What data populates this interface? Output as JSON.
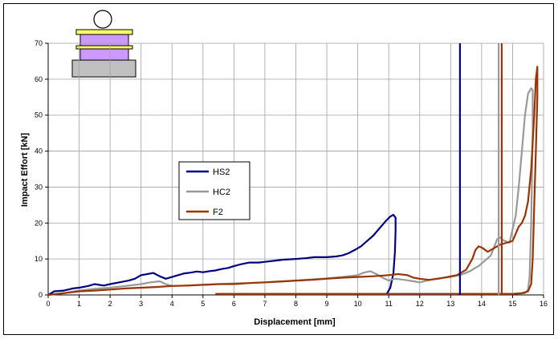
{
  "chart_data": {
    "type": "line",
    "xlabel": "Displacement [mm]",
    "ylabel": "Impact Effort [kN]",
    "xlim": [
      0,
      16
    ],
    "ylim": [
      0,
      70
    ],
    "x_ticks": [
      0,
      1,
      2,
      3,
      4,
      5,
      6,
      7,
      8,
      9,
      10,
      11,
      12,
      13,
      14,
      15,
      16
    ],
    "y_ticks": [
      0,
      10,
      20,
      30,
      40,
      50,
      60,
      70
    ],
    "grid": true,
    "legend_position": "center-left",
    "series": [
      {
        "name": "HS2",
        "color": "#000080",
        "points": [
          [
            0,
            0
          ],
          [
            0.2,
            1
          ],
          [
            0.5,
            1.2
          ],
          [
            0.8,
            1.8
          ],
          [
            1,
            2
          ],
          [
            1.3,
            2.5
          ],
          [
            1.5,
            3
          ],
          [
            1.8,
            2.6
          ],
          [
            2,
            3
          ],
          [
            2.3,
            3.5
          ],
          [
            2.6,
            4
          ],
          [
            2.8,
            4.5
          ],
          [
            3,
            5.5
          ],
          [
            3.2,
            5.8
          ],
          [
            3.4,
            6.1
          ],
          [
            3.6,
            5.2
          ],
          [
            3.8,
            4.5
          ],
          [
            4,
            5
          ],
          [
            4.2,
            5.5
          ],
          [
            4.4,
            6
          ],
          [
            4.6,
            6.2
          ],
          [
            4.8,
            6.5
          ],
          [
            5,
            6.3
          ],
          [
            5.2,
            6.6
          ],
          [
            5.4,
            6.8
          ],
          [
            5.6,
            7.2
          ],
          [
            5.8,
            7.5
          ],
          [
            6,
            8
          ],
          [
            6.2,
            8.5
          ],
          [
            6.5,
            9
          ],
          [
            6.8,
            9
          ],
          [
            7,
            9.2
          ],
          [
            7.3,
            9.5
          ],
          [
            7.6,
            9.8
          ],
          [
            8,
            10
          ],
          [
            8.3,
            10.2
          ],
          [
            8.6,
            10.5
          ],
          [
            9,
            10.5
          ],
          [
            9.3,
            10.7
          ],
          [
            9.5,
            11
          ],
          [
            9.7,
            11.6
          ],
          [
            9.9,
            12.5
          ],
          [
            10.1,
            13.5
          ],
          [
            10.3,
            15
          ],
          [
            10.5,
            16.5
          ],
          [
            10.7,
            18.5
          ],
          [
            10.9,
            20.5
          ],
          [
            11.05,
            21.8
          ],
          [
            11.15,
            22.3
          ],
          [
            11.22,
            21.5
          ],
          [
            11.22,
            18
          ],
          [
            11.2,
            12
          ],
          [
            11.15,
            6
          ],
          [
            11.05,
            2
          ],
          [
            10.95,
            0.5
          ],
          [
            10.9,
            0.2
          ],
          [
            11.5,
            0.2
          ],
          [
            12.5,
            0.2
          ],
          [
            13,
            0.2
          ],
          [
            13.3,
            0.2
          ]
        ]
      },
      {
        "name": "HC2",
        "color": "#999999",
        "points": [
          [
            0,
            0
          ],
          [
            0.5,
            0.5
          ],
          [
            1,
            1.2
          ],
          [
            1.5,
            1.7
          ],
          [
            2,
            2
          ],
          [
            2.5,
            2.5
          ],
          [
            3,
            3
          ],
          [
            3.3,
            3.5
          ],
          [
            3.6,
            3.8
          ],
          [
            3.8,
            3
          ],
          [
            4,
            2.5
          ],
          [
            4.5,
            2.6
          ],
          [
            5,
            2.8
          ],
          [
            5.5,
            3
          ],
          [
            6,
            3.2
          ],
          [
            6.5,
            3.3
          ],
          [
            7,
            3.5
          ],
          [
            7.5,
            3.8
          ],
          [
            8,
            4
          ],
          [
            8.5,
            4.3
          ],
          [
            9,
            4.6
          ],
          [
            9.5,
            5
          ],
          [
            10,
            5.5
          ],
          [
            10.2,
            6.2
          ],
          [
            10.4,
            6.6
          ],
          [
            10.6,
            5.8
          ],
          [
            10.8,
            4.8
          ],
          [
            11,
            4
          ],
          [
            11.2,
            4.5
          ],
          [
            11.5,
            4.2
          ],
          [
            11.8,
            3.8
          ],
          [
            12,
            3.5
          ],
          [
            12.5,
            4.5
          ],
          [
            13,
            5
          ],
          [
            13.3,
            5.5
          ],
          [
            13.6,
            6.5
          ],
          [
            13.9,
            8
          ],
          [
            14.1,
            9.5
          ],
          [
            14.3,
            11
          ],
          [
            14.5,
            15.5
          ],
          [
            14.6,
            16
          ],
          [
            14.7,
            15.2
          ],
          [
            14.9,
            14.5
          ],
          [
            15.1,
            22
          ],
          [
            15.2,
            30
          ],
          [
            15.3,
            40
          ],
          [
            15.4,
            50
          ],
          [
            15.5,
            56
          ],
          [
            15.6,
            57.5
          ],
          [
            15.65,
            57
          ],
          [
            15.65,
            45
          ],
          [
            15.6,
            20
          ],
          [
            15.55,
            5
          ],
          [
            15.5,
            1.5
          ],
          [
            15.4,
            0.5
          ],
          [
            15,
            0.3
          ],
          [
            14,
            0.3
          ],
          [
            13,
            0.3
          ],
          [
            12,
            0.3
          ],
          [
            11,
            0.3
          ],
          [
            10,
            0.3
          ],
          [
            9,
            0.3
          ],
          [
            8,
            0.3
          ],
          [
            7,
            0.3
          ],
          [
            6,
            0.3
          ],
          [
            5.5,
            0.3
          ]
        ]
      },
      {
        "name": "F2",
        "color": "#993300",
        "points": [
          [
            0,
            0
          ],
          [
            0.5,
            0.5
          ],
          [
            1,
            1
          ],
          [
            1.5,
            1.2
          ],
          [
            2,
            1.5
          ],
          [
            2.5,
            1.8
          ],
          [
            3,
            2
          ],
          [
            3.5,
            2.2
          ],
          [
            4,
            2.5
          ],
          [
            4.5,
            2.6
          ],
          [
            5,
            2.8
          ],
          [
            5.5,
            3
          ],
          [
            6,
            3
          ],
          [
            6.5,
            3.3
          ],
          [
            7,
            3.5
          ],
          [
            7.5,
            3.7
          ],
          [
            8,
            4
          ],
          [
            8.5,
            4.2
          ],
          [
            9,
            4.5
          ],
          [
            9.5,
            4.8
          ],
          [
            10,
            5
          ],
          [
            10.5,
            5.2
          ],
          [
            11,
            5.5
          ],
          [
            11.3,
            5.8
          ],
          [
            11.6,
            5.5
          ],
          [
            11.8,
            4.8
          ],
          [
            12,
            4.5
          ],
          [
            12.3,
            4.2
          ],
          [
            12.6,
            4.5
          ],
          [
            12.9,
            5
          ],
          [
            13.2,
            5.5
          ],
          [
            13.5,
            7
          ],
          [
            13.7,
            10
          ],
          [
            13.8,
            12.5
          ],
          [
            13.9,
            13.5
          ],
          [
            14,
            13.2
          ],
          [
            14.2,
            12
          ],
          [
            14.4,
            13
          ],
          [
            14.6,
            14
          ],
          [
            14.8,
            14.5
          ],
          [
            15,
            15
          ],
          [
            15.1,
            17
          ],
          [
            15.2,
            19
          ],
          [
            15.3,
            20
          ],
          [
            15.4,
            22
          ],
          [
            15.5,
            26
          ],
          [
            15.6,
            35
          ],
          [
            15.7,
            50
          ],
          [
            15.75,
            60
          ],
          [
            15.8,
            63.5
          ],
          [
            15.8,
            55
          ],
          [
            15.75,
            40
          ],
          [
            15.7,
            25
          ],
          [
            15.65,
            10
          ],
          [
            15.6,
            3
          ],
          [
            15.5,
            1
          ],
          [
            15.3,
            0.5
          ],
          [
            15,
            0.3
          ],
          [
            14,
            0.3
          ],
          [
            13,
            0.3
          ],
          [
            12,
            0.3
          ],
          [
            11,
            0.3
          ],
          [
            10,
            0.3
          ],
          [
            9,
            0.3
          ],
          [
            8,
            0.3
          ],
          [
            7,
            0.3
          ],
          [
            6,
            0.3
          ],
          [
            5.4,
            0.3
          ]
        ]
      }
    ],
    "vertical_lines": [
      {
        "x": 13.3,
        "color": "#000080"
      },
      {
        "x": 14.55,
        "color": "#999999"
      },
      {
        "x": 14.65,
        "color": "#993300"
      }
    ],
    "legend": [
      "HS2",
      "HC2",
      "F2"
    ]
  }
}
